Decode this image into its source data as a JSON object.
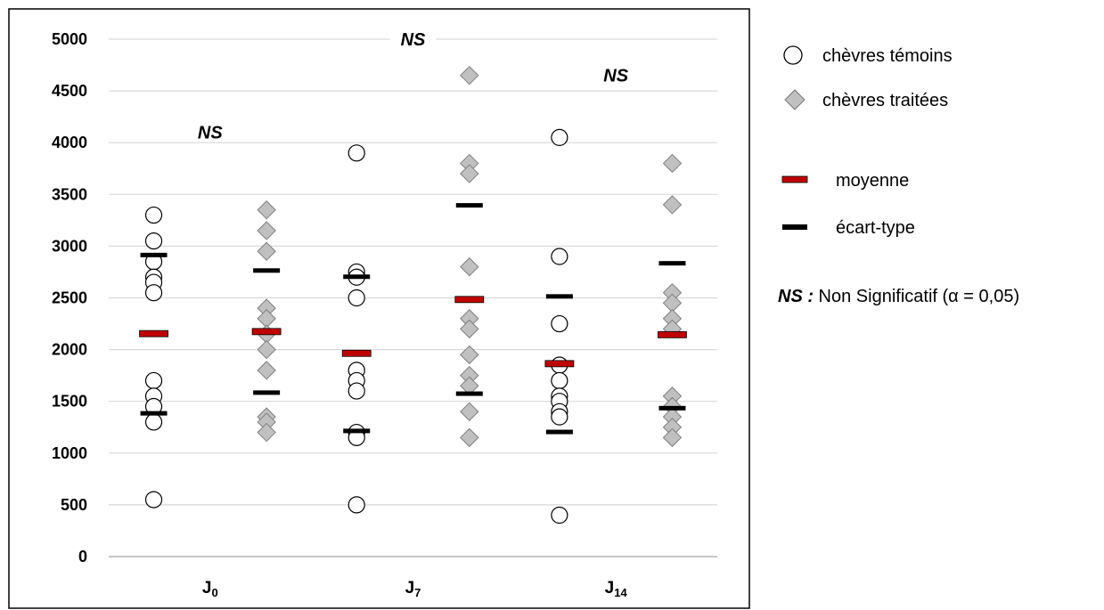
{
  "chart_data": {
    "type": "scatter",
    "title": "",
    "xlabel": "",
    "ylabel": "",
    "ylim": [
      0,
      5000
    ],
    "yticks": [
      0,
      500,
      1000,
      1500,
      2000,
      2500,
      3000,
      3500,
      4000,
      4500,
      5000
    ],
    "grid": true,
    "categories": [
      {
        "main": "J",
        "sub": "0"
      },
      {
        "main": "J",
        "sub": "7"
      },
      {
        "main": "J",
        "sub": "14"
      }
    ],
    "series": [
      {
        "name": "chèvres témoins",
        "marker": "circle",
        "color": "#ffffff",
        "values": [
          [
            3300,
            3050,
            2850,
            2700,
            2650,
            2550,
            1700,
            1550,
            1450,
            1300,
            550
          ],
          [
            3900,
            2750,
            2700,
            2500,
            1800,
            1700,
            1600,
            1200,
            1150,
            500
          ],
          [
            4050,
            2900,
            2250,
            1850,
            1700,
            1550,
            1500,
            1400,
            1350,
            400
          ]
        ]
      },
      {
        "name": "chèvres traitées",
        "marker": "diamond",
        "color": "#c0c0c0",
        "values": [
          [
            3350,
            3150,
            2950,
            2400,
            2300,
            2150,
            2000,
            1800,
            1350,
            1300,
            1200
          ],
          [
            4650,
            3800,
            3700,
            2800,
            2300,
            2200,
            1950,
            1750,
            1650,
            1400,
            1150
          ],
          [
            3800,
            3400,
            2550,
            2450,
            2300,
            2200,
            1550,
            1450,
            1350,
            1250,
            1150
          ]
        ]
      }
    ],
    "means": [
      [
        2150,
        2170
      ],
      [
        1960,
        2480
      ],
      [
        1860,
        2140
      ]
    ],
    "sd_bounds": [
      [
        [
          1380,
          2910
        ],
        [
          1580,
          2760
        ]
      ],
      [
        [
          1210,
          2700
        ],
        [
          1570,
          3390
        ]
      ],
      [
        [
          1200,
          2510
        ],
        [
          1430,
          2830
        ]
      ]
    ],
    "annotations": [
      {
        "text": "NS",
        "category": 0,
        "y": 4100
      },
      {
        "text": "NS",
        "category": 1,
        "y": 5000
      },
      {
        "text": "NS",
        "category": 2,
        "y": 4650
      }
    ],
    "legend": {
      "position": "right",
      "items": [
        {
          "label": "chèvres témoins",
          "symbol": "circle"
        },
        {
          "label": "chèvres traitées",
          "symbol": "diamond"
        },
        {
          "label": "moyenne",
          "symbol": "red-bar",
          "color": "#c00000"
        },
        {
          "label": "écart-type",
          "symbol": "black-bar",
          "color": "#000000"
        }
      ],
      "note_prefix": "NS :",
      "note_text": " Non Significatif (α = 0,05)"
    }
  }
}
